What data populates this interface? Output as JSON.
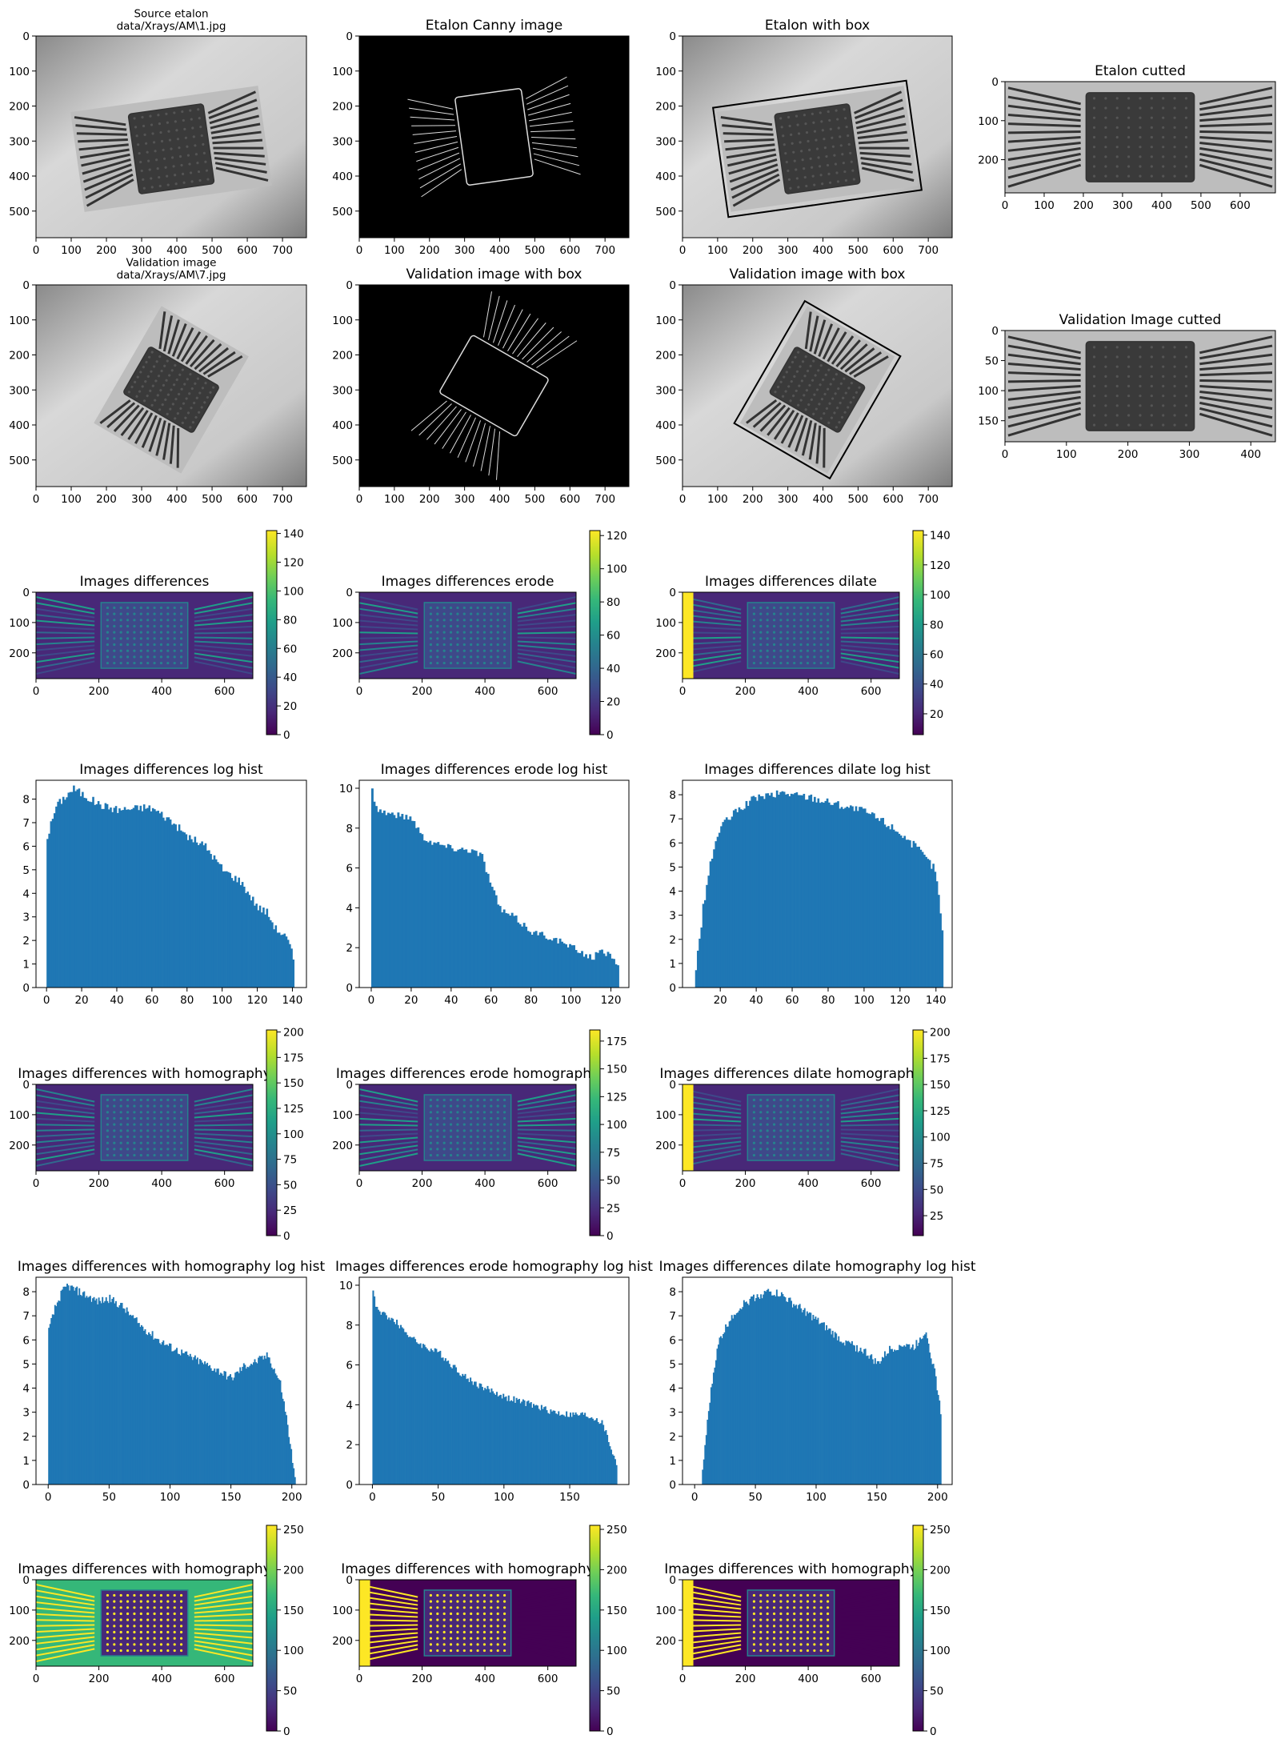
{
  "figure": {
    "bg": "#ffffff",
    "bar_color": "#1f77b4",
    "viridis": [
      "#440154",
      "#482878",
      "#3e4989",
      "#31688e",
      "#26828e",
      "#1f9e89",
      "#35b779",
      "#6ece58",
      "#b5de2b",
      "#fde725"
    ]
  },
  "images": {
    "etalon_source": {
      "title": "Source etalon\ndata/Xrays/AM\\1.jpg",
      "xticks": [
        "0",
        "100",
        "200",
        "300",
        "400",
        "500",
        "600",
        "700"
      ],
      "yticks": [
        "0",
        "100",
        "200",
        "300",
        "400",
        "500"
      ],
      "xmax": 768,
      "ymax": 576
    },
    "etalon_canny": {
      "title": "Etalon Canny image",
      "xticks": [
        "0",
        "100",
        "200",
        "300",
        "400",
        "500",
        "600",
        "700"
      ],
      "yticks": [
        "0",
        "100",
        "200",
        "300",
        "400",
        "500"
      ],
      "xmax": 768,
      "ymax": 576
    },
    "etalon_box": {
      "title": "Etalon with box",
      "xticks": [
        "0",
        "100",
        "200",
        "300",
        "400",
        "500",
        "600",
        "700"
      ],
      "yticks": [
        "0",
        "100",
        "200",
        "300",
        "400",
        "500"
      ],
      "xmax": 768,
      "ymax": 576
    },
    "etalon_cut": {
      "title": "Etalon cutted",
      "xticks": [
        "0",
        "100",
        "200",
        "300",
        "400",
        "500",
        "600"
      ],
      "yticks": [
        "0",
        "100",
        "200"
      ],
      "xmax": 690,
      "ymax": 285
    },
    "valid_source": {
      "title": "Validation image\ndata/Xrays/AM\\7.jpg",
      "xticks": [
        "0",
        "100",
        "200",
        "300",
        "400",
        "500",
        "600",
        "700"
      ],
      "yticks": [
        "0",
        "100",
        "200",
        "300",
        "400",
        "500"
      ],
      "xmax": 768,
      "ymax": 576
    },
    "valid_canny": {
      "title": "Validation image with box",
      "xticks": [
        "0",
        "100",
        "200",
        "300",
        "400",
        "500",
        "600",
        "700"
      ],
      "yticks": [
        "0",
        "100",
        "200",
        "300",
        "400",
        "500"
      ],
      "xmax": 768,
      "ymax": 576
    },
    "valid_box": {
      "title": "Validation image with box",
      "xticks": [
        "0",
        "100",
        "200",
        "300",
        "400",
        "500",
        "600",
        "700"
      ],
      "yticks": [
        "0",
        "100",
        "200",
        "300",
        "400",
        "500"
      ],
      "xmax": 768,
      "ymax": 576
    },
    "valid_cut": {
      "title": "Validation Image cutted",
      "xticks": [
        "0",
        "100",
        "200",
        "300",
        "400"
      ],
      "yticks": [
        "0",
        "50",
        "100",
        "150"
      ],
      "xmax": 440,
      "ymax": 185
    }
  },
  "heatmaps": [
    {
      "title": "Images differences",
      "xticks": [
        "0",
        "200",
        "400",
        "600"
      ],
      "yticks": [
        "0",
        "100",
        "200"
      ],
      "xmax": 690,
      "ymax": 285,
      "cticks": [
        "0",
        "20",
        "40",
        "60",
        "80",
        "100",
        "120",
        "140"
      ],
      "cmin": 0,
      "cmax": 142
    },
    {
      "title": "Images differences erode",
      "xticks": [
        "0",
        "200",
        "400",
        "600"
      ],
      "yticks": [
        "0",
        "100",
        "200"
      ],
      "xmax": 690,
      "ymax": 285,
      "cticks": [
        "0",
        "20",
        "40",
        "60",
        "80",
        "100",
        "120"
      ],
      "cmin": 0,
      "cmax": 123
    },
    {
      "title": "Images differences dilate",
      "xticks": [
        "0",
        "200",
        "400",
        "600"
      ],
      "yticks": [
        "0",
        "100",
        "200"
      ],
      "xmax": 690,
      "ymax": 285,
      "cticks": [
        "20",
        "40",
        "60",
        "80",
        "100",
        "120",
        "140"
      ],
      "cmin": 6,
      "cmax": 143
    },
    {
      "title": "Images differences with homography",
      "xticks": [
        "0",
        "200",
        "400",
        "600"
      ],
      "yticks": [
        "0",
        "100",
        "200"
      ],
      "xmax": 690,
      "ymax": 285,
      "cticks": [
        "0",
        "25",
        "50",
        "75",
        "100",
        "125",
        "150",
        "175",
        "200"
      ],
      "cmin": 0,
      "cmax": 202
    },
    {
      "title": "Images differences erode homography",
      "xticks": [
        "0",
        "200",
        "400",
        "600"
      ],
      "yticks": [
        "0",
        "100",
        "200"
      ],
      "xmax": 690,
      "ymax": 285,
      "cticks": [
        "0",
        "25",
        "50",
        "75",
        "100",
        "125",
        "150",
        "175"
      ],
      "cmin": 0,
      "cmax": 185
    },
    {
      "title": "Images differences dilate homography",
      "xticks": [
        "0",
        "200",
        "400",
        "600"
      ],
      "yticks": [
        "0",
        "100",
        "200"
      ],
      "xmax": 690,
      "ymax": 285,
      "cticks": [
        "25",
        "50",
        "75",
        "100",
        "125",
        "150",
        "175",
        "200"
      ],
      "cmin": 6,
      "cmax": 202
    },
    {
      "title": "Images differences with homography",
      "xticks": [
        "0",
        "200",
        "400",
        "600"
      ],
      "yticks": [
        "0",
        "100",
        "200"
      ],
      "xmax": 690,
      "ymax": 285,
      "cticks": [
        "0",
        "50",
        "100",
        "150",
        "200",
        "250"
      ],
      "cmin": 0,
      "cmax": 255
    },
    {
      "title": "Images differences with homography",
      "xticks": [
        "0",
        "200",
        "400",
        "600"
      ],
      "yticks": [
        "0",
        "100",
        "200"
      ],
      "xmax": 690,
      "ymax": 285,
      "cticks": [
        "0",
        "50",
        "100",
        "150",
        "200",
        "250"
      ],
      "cmin": 0,
      "cmax": 255
    },
    {
      "title": "Images differences with homography",
      "xticks": [
        "0",
        "200",
        "400",
        "600"
      ],
      "yticks": [
        "0",
        "100",
        "200"
      ],
      "xmax": 690,
      "ymax": 285,
      "cticks": [
        "0",
        "50",
        "100",
        "150",
        "200",
        "250"
      ],
      "cmin": 0,
      "cmax": 255
    }
  ],
  "chart_data": [
    {
      "type": "bar",
      "title": "Images differences log hist",
      "xlim": [
        -6,
        148
      ],
      "ylim": [
        0,
        8.8
      ],
      "xticks": [
        "0",
        "20",
        "40",
        "60",
        "80",
        "100",
        "120",
        "140"
      ],
      "yticks": [
        "0",
        "1",
        "2",
        "3",
        "4",
        "5",
        "6",
        "7",
        "8"
      ],
      "x": [
        0,
        5,
        10,
        15,
        20,
        30,
        40,
        50,
        55,
        60,
        70,
        80,
        90,
        100,
        110,
        120,
        125,
        130,
        135,
        138,
        140
      ],
      "values": [
        6.4,
        7.7,
        8.1,
        8.45,
        8.2,
        7.75,
        7.55,
        7.6,
        7.65,
        7.6,
        7.1,
        6.4,
        6.0,
        5.0,
        4.5,
        3.4,
        3.2,
        2.5,
        2.2,
        1.8,
        1.2
      ]
    },
    {
      "type": "bar",
      "title": "Images differences erode log hist",
      "xlim": [
        -6,
        129
      ],
      "ylim": [
        0,
        10.4
      ],
      "xticks": [
        "0",
        "20",
        "40",
        "60",
        "80",
        "100",
        "120"
      ],
      "yticks": [
        "0",
        "2",
        "4",
        "6",
        "8",
        "10"
      ],
      "x": [
        0,
        1,
        3,
        10,
        20,
        25,
        30,
        40,
        50,
        55,
        60,
        65,
        70,
        80,
        90,
        100,
        110,
        115,
        120,
        123
      ],
      "values": [
        9.9,
        9.5,
        8.9,
        8.7,
        8.5,
        7.6,
        7.3,
        7.0,
        6.9,
        6.6,
        5.0,
        3.8,
        3.6,
        2.8,
        2.5,
        2.0,
        1.5,
        1.8,
        1.6,
        1.2
      ]
    },
    {
      "type": "bar",
      "title": "Images differences dilate log hist",
      "xlim": [
        -1,
        149
      ],
      "ylim": [
        0,
        8.6
      ],
      "xticks": [
        "20",
        "40",
        "60",
        "80",
        "100",
        "120",
        "140"
      ],
      "yticks": [
        "0",
        "1",
        "2",
        "3",
        "4",
        "5",
        "6",
        "7",
        "8"
      ],
      "x": [
        6,
        8,
        10,
        13,
        16,
        20,
        30,
        40,
        50,
        55,
        60,
        70,
        80,
        90,
        100,
        110,
        120,
        130,
        138,
        140,
        143
      ],
      "values": [
        0.8,
        2.0,
        3.3,
        4.7,
        5.8,
        6.7,
        7.4,
        7.9,
        8.0,
        8.1,
        8.0,
        7.9,
        7.7,
        7.5,
        7.3,
        6.9,
        6.4,
        5.7,
        5.0,
        4.5,
        2.3
      ]
    },
    {
      "type": "bar",
      "title": "Images differences with homography log hist",
      "xlim": [
        -10,
        212
      ],
      "ylim": [
        0,
        8.6
      ],
      "xticks": [
        "0",
        "50",
        "100",
        "150",
        "200"
      ],
      "yticks": [
        "0",
        "1",
        "2",
        "3",
        "4",
        "5",
        "6",
        "7",
        "8"
      ],
      "x": [
        0,
        5,
        10,
        15,
        25,
        40,
        50,
        60,
        75,
        90,
        100,
        120,
        140,
        150,
        160,
        170,
        180,
        190,
        195,
        200,
        202
      ],
      "values": [
        6.4,
        7.3,
        7.9,
        8.25,
        8.0,
        7.6,
        7.7,
        7.4,
        6.6,
        6.0,
        5.7,
        5.2,
        4.7,
        4.4,
        4.9,
        5.1,
        5.35,
        4.2,
        2.8,
        1.0,
        0.2
      ]
    },
    {
      "type": "bar",
      "title": "Images differences erode homography log hist",
      "xlim": [
        -10,
        195
      ],
      "ylim": [
        0,
        10.4
      ],
      "xticks": [
        "0",
        "50",
        "100",
        "150"
      ],
      "yticks": [
        "0",
        "2",
        "4",
        "6",
        "8",
        "10"
      ],
      "x": [
        0,
        2,
        5,
        10,
        20,
        30,
        40,
        50,
        60,
        70,
        80,
        100,
        120,
        140,
        150,
        160,
        170,
        175,
        180,
        185
      ],
      "values": [
        9.8,
        9.0,
        8.6,
        8.5,
        8.0,
        7.3,
        6.9,
        6.6,
        6.0,
        5.4,
        5.0,
        4.4,
        4.0,
        3.6,
        3.5,
        3.5,
        3.3,
        3.0,
        2.0,
        1.0
      ]
    },
    {
      "type": "bar",
      "title": "Images differences dilate homography log hist",
      "xlim": [
        -10,
        212
      ],
      "ylim": [
        0,
        8.6
      ],
      "xticks": [
        "0",
        "50",
        "100",
        "150",
        "200"
      ],
      "yticks": [
        "0",
        "1",
        "2",
        "3",
        "4",
        "5",
        "6",
        "7",
        "8"
      ],
      "x": [
        6,
        8,
        12,
        16,
        20,
        30,
        40,
        50,
        60,
        70,
        80,
        90,
        100,
        120,
        140,
        150,
        160,
        170,
        180,
        190,
        198,
        202
      ],
      "values": [
        0.5,
        1.6,
        3.5,
        5.0,
        6.0,
        7.0,
        7.5,
        7.8,
        8.0,
        7.9,
        7.5,
        7.2,
        6.8,
        6.0,
        5.5,
        5.0,
        5.6,
        5.8,
        5.7,
        6.4,
        4.4,
        3.0
      ]
    }
  ]
}
